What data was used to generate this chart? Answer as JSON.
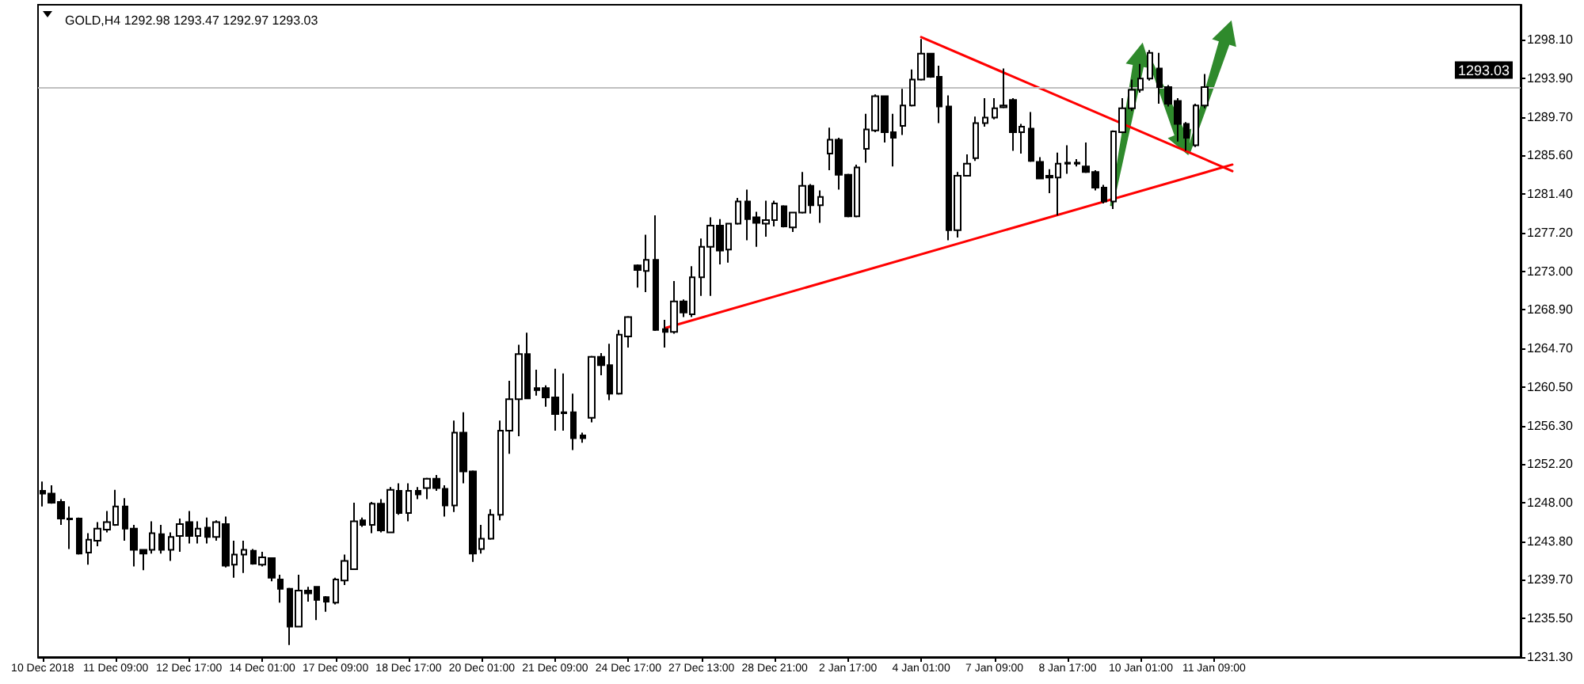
{
  "chart_data": {
    "type": "candlestick",
    "title": "GOLD,H4 1292.98 1293.47 1292.97 1293.03",
    "categories": [
      "10 Dec 2018",
      null,
      null,
      null,
      null,
      null,
      null,
      null,
      "11 Dec 09:00",
      null,
      null,
      null,
      null,
      null,
      null,
      null,
      "12 Dec 17:00",
      null,
      null,
      null,
      null,
      null,
      null,
      null,
      "14 Dec 01:00",
      null,
      null,
      null,
      null,
      null,
      null,
      null,
      "17 Dec 09:00",
      null,
      null,
      null,
      null,
      null,
      null,
      null,
      "18 Dec 17:00",
      null,
      null,
      null,
      null,
      null,
      null,
      null,
      "20 Dec 01:00",
      null,
      null,
      null,
      null,
      null,
      null,
      null,
      "21 Dec 09:00",
      null,
      null,
      null,
      null,
      null,
      null,
      null,
      "24 Dec 17:00",
      null,
      null,
      null,
      null,
      null,
      null,
      null,
      "27 Dec 13:00",
      null,
      null,
      null,
      null,
      null,
      null,
      null,
      "28 Dec 21:00",
      null,
      null,
      null,
      null,
      null,
      null,
      null,
      "2 Jan 17:00",
      null,
      null,
      null,
      null,
      null,
      null,
      null,
      "4 Jan 01:00",
      null,
      null,
      null,
      null,
      null,
      null,
      null,
      "7 Jan 09:00",
      null,
      null,
      null,
      null,
      null,
      null,
      null,
      "8 Jan 17:00",
      null,
      null,
      null,
      null,
      null,
      null,
      null,
      "10 Jan 01:00",
      null,
      null,
      null,
      null,
      null,
      null,
      null,
      "11 Jan 09:00",
      null,
      null,
      null,
      null,
      null,
      null,
      null,
      null,
      null,
      null,
      null,
      null,
      null,
      null,
      null,
      null,
      null,
      null,
      null,
      null,
      null,
      null,
      null,
      null,
      null,
      null,
      null,
      null,
      null,
      null,
      null,
      null,
      null
    ],
    "ohlc": [
      [
        1249.3,
        1250.3,
        1247.6,
        1249.0
      ],
      [
        1249.0,
        1249.9,
        1247.9,
        1248.0
      ],
      [
        1248.1,
        1248.4,
        1245.6,
        1246.3
      ],
      [
        1246.3,
        1247.6,
        1243.0,
        1246.2
      ],
      [
        1246.3,
        1246.4,
        1242.4,
        1242.5
      ],
      [
        1242.6,
        1244.7,
        1241.3,
        1244.0
      ],
      [
        1243.9,
        1245.9,
        1243.3,
        1245.2
      ],
      [
        1245.1,
        1247.1,
        1244.8,
        1245.9
      ],
      [
        1245.6,
        1249.4,
        1245.5,
        1247.6
      ],
      [
        1247.6,
        1248.5,
        1243.9,
        1245.2
      ],
      [
        1245.2,
        1245.6,
        1241.1,
        1242.9
      ],
      [
        1242.9,
        1243.0,
        1240.7,
        1242.5
      ],
      [
        1242.9,
        1246.0,
        1242.5,
        1244.7
      ],
      [
        1244.6,
        1245.6,
        1242.5,
        1242.9
      ],
      [
        1242.9,
        1244.8,
        1241.7,
        1244.3
      ],
      [
        1244.4,
        1246.3,
        1242.7,
        1245.7
      ],
      [
        1245.9,
        1247.1,
        1243.6,
        1244.4
      ],
      [
        1244.4,
        1246.0,
        1243.6,
        1245.2
      ],
      [
        1245.3,
        1246.4,
        1243.6,
        1244.3
      ],
      [
        1244.3,
        1246.1,
        1243.9,
        1245.9
      ],
      [
        1245.7,
        1246.5,
        1241.0,
        1241.2
      ],
      [
        1241.3,
        1243.9,
        1239.9,
        1242.4
      ],
      [
        1242.4,
        1243.9,
        1240.4,
        1242.9
      ],
      [
        1242.8,
        1243.0,
        1241.3,
        1241.4
      ],
      [
        1241.3,
        1242.7,
        1241.1,
        1242.1
      ],
      [
        1242.0,
        1242.1,
        1239.5,
        1239.9
      ],
      [
        1239.7,
        1240.2,
        1237.2,
        1238.7
      ],
      [
        1238.7,
        1238.8,
        1232.6,
        1234.6
      ],
      [
        1234.6,
        1240.2,
        1234.6,
        1238.5
      ],
      [
        1238.5,
        1238.9,
        1237.3,
        1238.2
      ],
      [
        1238.9,
        1239.0,
        1235.3,
        1237.5
      ],
      [
        1237.8,
        1237.9,
        1236.2,
        1237.3
      ],
      [
        1237.2,
        1239.9,
        1237.0,
        1239.7
      ],
      [
        1239.6,
        1242.4,
        1239.1,
        1241.7
      ],
      [
        1240.8,
        1248.0,
        1240.8,
        1246.0
      ],
      [
        1246.1,
        1246.4,
        1245.4,
        1245.6
      ],
      [
        1245.6,
        1248.1,
        1244.7,
        1247.9
      ],
      [
        1247.9,
        1248.4,
        1244.8,
        1245.0
      ],
      [
        1244.8,
        1249.7,
        1244.7,
        1249.4
      ],
      [
        1249.3,
        1250.1,
        1246.7,
        1246.9
      ],
      [
        1246.9,
        1250.1,
        1246.0,
        1249.3
      ],
      [
        1249.3,
        1249.7,
        1248.4,
        1248.9
      ],
      [
        1249.6,
        1250.7,
        1248.4,
        1250.6
      ],
      [
        1250.6,
        1251.0,
        1249.3,
        1249.6
      ],
      [
        1249.5,
        1249.9,
        1246.5,
        1247.7
      ],
      [
        1247.7,
        1256.9,
        1247.0,
        1255.6
      ],
      [
        1255.6,
        1257.8,
        1250.1,
        1251.4
      ],
      [
        1251.4,
        1251.5,
        1241.6,
        1242.5
      ],
      [
        1243.0,
        1245.6,
        1242.5,
        1244.1
      ],
      [
        1244.1,
        1247.3,
        1244.0,
        1246.7
      ],
      [
        1246.7,
        1256.9,
        1246.1,
        1255.8
      ],
      [
        1255.8,
        1261.2,
        1253.3,
        1259.2
      ],
      [
        1259.2,
        1265.1,
        1255.2,
        1264.1
      ],
      [
        1264.1,
        1266.4,
        1259.2,
        1259.3
      ],
      [
        1260.4,
        1262.4,
        1259.6,
        1260.2
      ],
      [
        1260.4,
        1260.7,
        1258.4,
        1259.4
      ],
      [
        1259.4,
        1262.5,
        1255.8,
        1257.6
      ],
      [
        1257.8,
        1262.0,
        1255.8,
        1257.7
      ],
      [
        1257.8,
        1259.8,
        1253.7,
        1255.0
      ],
      [
        1255.3,
        1255.6,
        1254.5,
        1255.0
      ],
      [
        1257.2,
        1263.9,
        1256.7,
        1263.8
      ],
      [
        1263.8,
        1264.2,
        1261.8,
        1262.9
      ],
      [
        1262.9,
        1265.2,
        1259.1,
        1259.8
      ],
      [
        1259.8,
        1266.7,
        1259.7,
        1266.2
      ],
      [
        1266.0,
        1268.2,
        1264.8,
        1268.1
      ],
      [
        1273.7,
        1273.8,
        1271.3,
        1273.2
      ],
      [
        1273.1,
        1277.0,
        1270.8,
        1274.3
      ],
      [
        1274.3,
        1279.1,
        1266.6,
        1266.7
      ],
      [
        1266.8,
        1267.8,
        1264.8,
        1266.5
      ],
      [
        1266.5,
        1272.0,
        1266.3,
        1269.8
      ],
      [
        1269.8,
        1270.0,
        1268.1,
        1268.6
      ],
      [
        1268.4,
        1273.6,
        1268.1,
        1272.4
      ],
      [
        1272.4,
        1276.6,
        1270.4,
        1275.7
      ],
      [
        1275.7,
        1278.9,
        1270.4,
        1278.0
      ],
      [
        1278.0,
        1278.7,
        1273.8,
        1275.3
      ],
      [
        1275.4,
        1278.3,
        1274.0,
        1278.2
      ],
      [
        1278.2,
        1281.0,
        1278.1,
        1280.6
      ],
      [
        1280.6,
        1281.9,
        1276.4,
        1278.7
      ],
      [
        1278.9,
        1279.5,
        1275.7,
        1278.3
      ],
      [
        1278.2,
        1280.7,
        1276.8,
        1278.6
      ],
      [
        1278.6,
        1280.7,
        1277.9,
        1280.4
      ],
      [
        1280.1,
        1280.2,
        1277.8,
        1277.9
      ],
      [
        1277.8,
        1279.5,
        1277.3,
        1279.4
      ],
      [
        1279.4,
        1283.8,
        1279.3,
        1282.3
      ],
      [
        1282.3,
        1282.5,
        1279.3,
        1280.2
      ],
      [
        1280.2,
        1281.8,
        1278.3,
        1281.1
      ],
      [
        1285.8,
        1288.6,
        1284.0,
        1287.3
      ],
      [
        1287.3,
        1287.5,
        1281.9,
        1283.5
      ],
      [
        1283.5,
        1283.6,
        1278.9,
        1279.0
      ],
      [
        1279.0,
        1284.6,
        1278.9,
        1284.3
      ],
      [
        1286.3,
        1290.1,
        1284.8,
        1288.4
      ],
      [
        1288.3,
        1292.2,
        1288.1,
        1292.0
      ],
      [
        1292.0,
        1292.1,
        1287.0,
        1288.1
      ],
      [
        1288.1,
        1290.1,
        1284.4,
        1287.5
      ],
      [
        1288.8,
        1292.8,
        1287.8,
        1291.0
      ],
      [
        1291.0,
        1294.9,
        1290.9,
        1293.8
      ],
      [
        1293.8,
        1298.2,
        1293.7,
        1296.6
      ],
      [
        1296.6,
        1296.7,
        1294.0,
        1294.1
      ],
      [
        1294.1,
        1295.3,
        1289.1,
        1290.9
      ],
      [
        1290.9,
        1292.1,
        1276.4,
        1277.5
      ],
      [
        1277.5,
        1283.8,
        1276.7,
        1283.4
      ],
      [
        1283.4,
        1285.7,
        1283.3,
        1284.7
      ],
      [
        1285.3,
        1289.8,
        1285.0,
        1289.1
      ],
      [
        1289.1,
        1291.8,
        1288.7,
        1289.7
      ],
      [
        1289.7,
        1291.8,
        1289.5,
        1290.7
      ],
      [
        1290.8,
        1295.0,
        1290.7,
        1291.0
      ],
      [
        1291.6,
        1291.8,
        1286.1,
        1288.1
      ],
      [
        1288.1,
        1289.0,
        1285.8,
        1288.7
      ],
      [
        1288.5,
        1290.3,
        1284.9,
        1285.0
      ],
      [
        1284.9,
        1285.4,
        1283.0,
        1283.1
      ],
      [
        1283.4,
        1284.1,
        1281.5,
        1283.2
      ],
      [
        1283.2,
        1285.9,
        1279.1,
        1284.7
      ],
      [
        1284.8,
        1286.7,
        1283.6,
        1284.7
      ],
      [
        1284.8,
        1285.2,
        1284.4,
        1284.7
      ],
      [
        1284.4,
        1287.0,
        1283.7,
        1283.8
      ],
      [
        1283.8,
        1284.0,
        1281.8,
        1282.1
      ],
      [
        1282.1,
        1282.4,
        1280.4,
        1280.6
      ],
      [
        1280.6,
        1288.3,
        1279.8,
        1288.2
      ],
      [
        1288.1,
        1291.8,
        1288.0,
        1290.7
      ],
      [
        1290.7,
        1293.8,
        1290.4,
        1292.7
      ],
      [
        1292.7,
        1295.5,
        1292.4,
        1293.9
      ],
      [
        1293.9,
        1297.0,
        1293.7,
        1296.7
      ],
      [
        1295.0,
        1296.7,
        1291.2,
        1293.0
      ],
      [
        1293.0,
        1293.2,
        1290.9,
        1291.2
      ],
      [
        1291.5,
        1291.8,
        1287.1,
        1289.0
      ],
      [
        1289.0,
        1289.2,
        1286.1,
        1287.5
      ],
      [
        1286.7,
        1291.2,
        1286.5,
        1291.0
      ],
      [
        1291.0,
        1294.4,
        1290.7,
        1293.0
      ],
      null,
      null,
      null,
      null,
      null,
      null,
      null,
      null,
      null,
      null,
      null,
      null,
      null,
      null,
      null,
      null,
      null,
      null,
      null,
      null,
      null,
      null,
      null,
      null,
      null,
      null,
      null,
      null,
      null,
      null,
      null,
      null,
      null,
      null
    ],
    "series": [
      {
        "type": "line",
        "values": [
          null,
          null,
          null,
          null,
          null,
          null,
          null,
          null,
          null,
          null,
          null,
          null,
          null,
          null,
          null,
          null,
          null,
          null,
          null,
          null,
          null,
          null,
          null,
          null,
          null,
          null,
          null,
          null,
          null,
          null,
          null,
          null,
          null,
          null,
          null,
          null,
          null,
          null,
          null,
          null,
          null,
          null,
          null,
          null,
          null,
          null,
          null,
          null,
          null,
          null,
          null,
          null,
          null,
          null,
          null,
          null,
          null,
          null,
          null,
          null,
          null,
          null,
          null,
          null,
          null,
          null,
          null,
          null,
          1266.9,
          null,
          null,
          null,
          null,
          null,
          null,
          null,
          null,
          null,
          null,
          null,
          null,
          null,
          null,
          null,
          null,
          null,
          null,
          null,
          null,
          null,
          null,
          null,
          null,
          null,
          null,
          null,
          null,
          null,
          null,
          null,
          null,
          null,
          null,
          null,
          null,
          null,
          null,
          null,
          null,
          null,
          null,
          null,
          null,
          null,
          null,
          null,
          null,
          null,
          null,
          null,
          null,
          null,
          null,
          null,
          null,
          null,
          null,
          null,
          null,
          null,
          1284.6,
          null,
          null,
          null,
          null,
          null,
          null,
          null,
          null,
          null,
          null,
          null,
          null,
          null,
          null,
          null,
          null,
          null,
          null,
          null,
          null,
          null,
          null,
          null,
          null,
          null,
          null,
          null,
          null,
          null,
          null,
          null
        ],
        "color": "#ff0000"
      },
      {
        "type": "line",
        "values": [
          null,
          null,
          null,
          null,
          null,
          null,
          null,
          null,
          null,
          null,
          null,
          null,
          null,
          null,
          null,
          null,
          null,
          null,
          null,
          null,
          null,
          null,
          null,
          null,
          null,
          null,
          null,
          null,
          null,
          null,
          null,
          null,
          null,
          null,
          null,
          null,
          null,
          null,
          null,
          null,
          null,
          null,
          null,
          null,
          null,
          null,
          null,
          null,
          null,
          null,
          null,
          null,
          null,
          null,
          null,
          null,
          null,
          null,
          null,
          null,
          null,
          null,
          null,
          null,
          null,
          null,
          null,
          null,
          null,
          null,
          null,
          null,
          null,
          null,
          null,
          null,
          null,
          null,
          null,
          null,
          null,
          null,
          null,
          null,
          null,
          null,
          null,
          null,
          null,
          null,
          null,
          null,
          null,
          null,
          null,
          null,
          1298.4,
          null,
          null,
          null,
          null,
          null,
          null,
          null,
          null,
          null,
          null,
          null,
          null,
          null,
          null,
          null,
          null,
          null,
          null,
          null,
          null,
          null,
          null,
          null,
          null,
          null,
          null,
          null,
          null,
          null,
          null,
          null,
          null,
          null,
          1283.9,
          null,
          null,
          null,
          null,
          null,
          null,
          null,
          null,
          null,
          null,
          null,
          null,
          null,
          null,
          null,
          null,
          null,
          null,
          null,
          null,
          null,
          null,
          null,
          null,
          null,
          null,
          null,
          null,
          null,
          null,
          null
        ],
        "color": "#ff0000"
      }
    ],
    "ref_lines": [
      {
        "axis": "y",
        "value": 1293.03,
        "label": "1293.03",
        "color": "#c0c0c0"
      }
    ],
    "ylim": [
      1231.3,
      1301.9
    ],
    "yticks": [
      {
        "value": 1231.3,
        "label": "1231.30"
      },
      {
        "value": 1235.5,
        "label": "1235.50"
      },
      {
        "value": 1239.7,
        "label": "1239.70"
      },
      {
        "value": 1243.8,
        "label": "1243.80"
      },
      {
        "value": 1248,
        "label": "1248.00"
      },
      {
        "value": 1252.2,
        "label": "1252.20"
      },
      {
        "value": 1256.3,
        "label": "1256.30"
      },
      {
        "value": 1260.5,
        "label": "1260.50"
      },
      {
        "value": 1264.7,
        "label": "1264.70"
      },
      {
        "value": 1268.9,
        "label": "1268.90"
      },
      {
        "value": 1273,
        "label": "1273.00"
      },
      {
        "value": 1277.2,
        "label": "1277.20"
      },
      {
        "value": 1281.4,
        "label": "1281.40"
      },
      {
        "value": 1285.6,
        "label": "1285.60"
      },
      {
        "value": 1289.7,
        "label": "1289.70"
      },
      {
        "value": 1293.9,
        "label": "1293.90"
      },
      {
        "value": 1298.1,
        "label": "1298.10"
      }
    ],
    "grid": false
  }
}
